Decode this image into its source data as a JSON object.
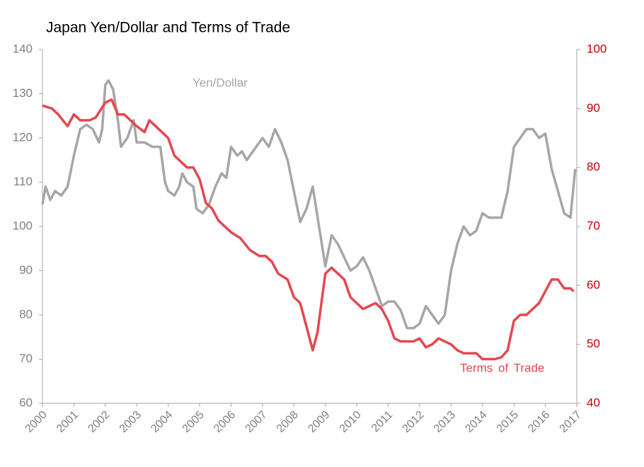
{
  "chart_data": {
    "type": "line",
    "title": "Japan Yen/Dollar and Terms of Trade",
    "annotations": [
      "Yen/Dollar",
      "Terms of Trade"
    ],
    "xlim": [
      2000,
      2017
    ],
    "xticks": [
      2000,
      2001,
      2002,
      2003,
      2004,
      2005,
      2006,
      2007,
      2008,
      2009,
      2010,
      2011,
      2012,
      2013,
      2014,
      2015,
      2016,
      2017
    ],
    "ylim": [
      60,
      140
    ],
    "yticks": [
      60,
      70,
      80,
      90,
      100,
      110,
      120,
      130,
      140
    ],
    "y2lim": [
      40,
      100
    ],
    "y2ticks": [
      40,
      50,
      60,
      70,
      80,
      90,
      100
    ],
    "series": [
      {
        "name": "Yen/Dollar",
        "color": "#a6a6a6",
        "x": [
          2000.0,
          2000.1,
          2000.25,
          2000.4,
          2000.6,
          2000.8,
          2001.0,
          2001.2,
          2001.4,
          2001.6,
          2001.8,
          2001.9,
          2002.0,
          2002.1,
          2002.25,
          2002.4,
          2002.5,
          2002.7,
          2002.9,
          2003.0,
          2003.25,
          2003.5,
          2003.75,
          2003.9,
          2004.0,
          2004.2,
          2004.35,
          2004.45,
          2004.6,
          2004.8,
          2004.9,
          2005.1,
          2005.3,
          2005.5,
          2005.7,
          2005.85,
          2006.0,
          2006.2,
          2006.35,
          2006.5,
          2006.6,
          2006.8,
          2007.0,
          2007.2,
          2007.4,
          2007.6,
          2007.8,
          2008.0,
          2008.2,
          2008.4,
          2008.6,
          2008.8,
          2009.0,
          2009.2,
          2009.4,
          2009.6,
          2009.8,
          2010.0,
          2010.2,
          2010.4,
          2010.6,
          2010.8,
          2011.0,
          2011.2,
          2011.4,
          2011.6,
          2011.8,
          2012.0,
          2012.2,
          2012.4,
          2012.6,
          2012.8,
          2013.0,
          2013.2,
          2013.4,
          2013.6,
          2013.8,
          2014.0,
          2014.2,
          2014.4,
          2014.6,
          2014.8,
          2015.0,
          2015.2,
          2015.4,
          2015.6,
          2015.8,
          2016.0,
          2016.2,
          2016.4,
          2016.6,
          2016.8,
          2016.95
        ],
        "values": [
          105,
          109,
          106,
          108,
          107,
          109,
          116,
          122,
          123,
          122,
          119,
          122,
          132,
          133,
          131,
          124,
          118,
          120,
          124,
          119,
          119,
          118,
          118,
          110,
          108,
          107,
          109,
          112,
          110,
          109,
          104,
          103,
          105,
          109,
          112,
          111,
          118,
          116,
          117,
          115,
          116,
          118,
          120,
          118,
          122,
          119,
          115,
          108,
          101,
          104,
          109,
          100,
          91,
          98,
          96,
          93,
          90,
          91,
          93,
          90,
          86,
          82,
          83,
          83,
          81,
          77,
          77,
          78,
          82,
          80,
          78,
          80,
          90,
          96,
          100,
          98,
          99,
          103,
          102,
          102,
          102,
          108,
          118,
          120,
          122,
          122,
          120,
          121,
          113,
          108,
          103,
          102,
          113
        ]
      },
      {
        "name": "Terms of Trade",
        "color": "#e5474f",
        "axis": "y2",
        "x": [
          2000.0,
          2000.3,
          2000.5,
          2000.8,
          2001.0,
          2001.2,
          2001.5,
          2001.7,
          2002.0,
          2002.2,
          2002.4,
          2002.6,
          2002.8,
          2003.0,
          2003.25,
          2003.4,
          2003.6,
          2003.8,
          2004.0,
          2004.2,
          2004.4,
          2004.6,
          2004.8,
          2005.0,
          2005.2,
          2005.4,
          2005.6,
          2005.8,
          2006.0,
          2006.3,
          2006.6,
          2006.9,
          2007.1,
          2007.3,
          2007.5,
          2007.8,
          2008.0,
          2008.2,
          2008.4,
          2008.6,
          2008.75,
          2009.0,
          2009.2,
          2009.4,
          2009.6,
          2009.8,
          2010.0,
          2010.2,
          2010.4,
          2010.6,
          2010.8,
          2011.0,
          2011.2,
          2011.4,
          2011.6,
          2011.8,
          2012.0,
          2012.2,
          2012.4,
          2012.6,
          2012.8,
          2013.0,
          2013.2,
          2013.4,
          2013.6,
          2013.8,
          2014.0,
          2014.2,
          2014.4,
          2014.6,
          2014.8,
          2015.0,
          2015.2,
          2015.4,
          2015.6,
          2015.8,
          2016.0,
          2016.2,
          2016.4,
          2016.6,
          2016.8,
          2016.9
        ],
        "values": [
          90.5,
          90,
          89,
          87,
          89,
          88,
          88,
          88.5,
          91,
          91.5,
          89,
          89,
          88,
          87,
          86,
          88,
          87,
          86,
          85,
          82,
          81,
          80,
          80,
          78,
          74,
          73,
          71,
          70,
          69,
          68,
          66,
          65,
          65,
          64,
          62,
          61,
          58,
          57,
          53,
          49,
          52,
          62,
          63,
          62,
          61,
          58,
          57,
          56,
          56.5,
          57,
          56,
          54,
          51,
          50.5,
          50.5,
          50.5,
          51,
          49.5,
          50,
          51,
          50.5,
          50,
          49,
          48.5,
          48.5,
          48.5,
          47.5,
          47.5,
          47.5,
          47.8,
          49,
          54,
          55,
          55,
          56,
          57,
          59,
          61,
          61,
          59.5,
          59.5,
          59
        ]
      }
    ]
  }
}
